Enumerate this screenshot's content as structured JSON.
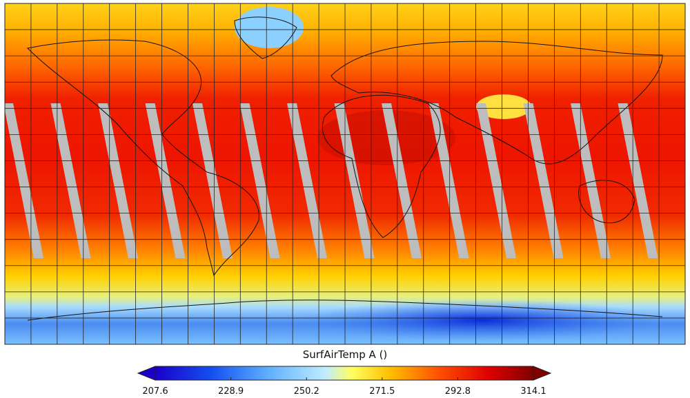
{
  "colorbar": {
    "title": "SurfAirTemp A ()",
    "ticks": [
      207.6,
      228.9,
      250.2,
      271.5,
      292.8,
      314.1
    ]
  }
}
